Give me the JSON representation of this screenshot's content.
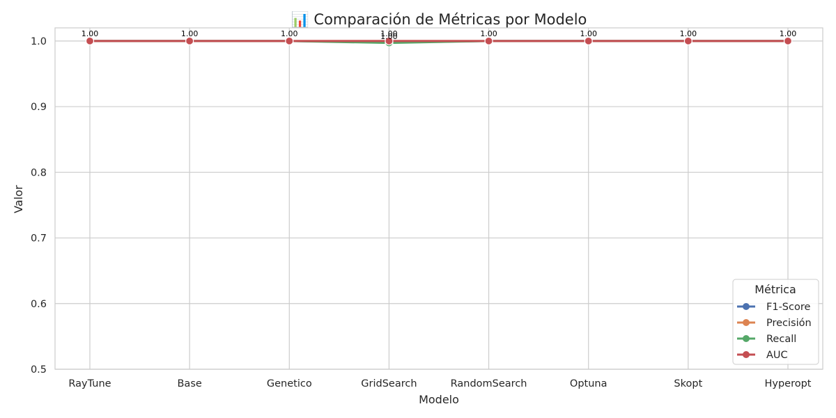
{
  "chart_data": {
    "type": "line",
    "title": "📊 Comparación de Métricas por Modelo",
    "xlabel": "Modelo",
    "ylabel": "Valor",
    "ylim": [
      0.5,
      1.02
    ],
    "yticks": [
      "0.5",
      "0.6",
      "0.7",
      "0.8",
      "0.9",
      "1.0"
    ],
    "grid": true,
    "legend": {
      "title": "Métrica",
      "placement": "bottom-right"
    },
    "categories": [
      "RayTune",
      "Base",
      "Genetico",
      "GridSearch",
      "RandomSearch",
      "Optuna",
      "Skopt",
      "Hyperopt"
    ],
    "series": [
      {
        "name": "F1-Score",
        "color": "#4c72b0",
        "values": [
          1.0,
          1.0,
          1.0,
          0.998,
          1.0,
          1.0,
          1.0,
          1.0
        ]
      },
      {
        "name": "Precisión",
        "color": "#dd8452",
        "values": [
          1.0,
          1.0,
          1.0,
          1.0,
          1.0,
          1.0,
          1.0,
          1.0
        ]
      },
      {
        "name": "Recall",
        "color": "#55a868",
        "values": [
          1.0,
          1.0,
          1.0,
          0.997,
          1.0,
          1.0,
          1.0,
          1.0
        ]
      },
      {
        "name": "AUC",
        "color": "#c44e52",
        "values": [
          1.0,
          1.0,
          1.0,
          1.0,
          1.0,
          1.0,
          1.0,
          1.0
        ]
      }
    ],
    "data_labels": [
      "1.00",
      "1.00",
      "1.00",
      "1.00",
      "1.00",
      "1.00",
      "1.00",
      "1.00"
    ]
  }
}
